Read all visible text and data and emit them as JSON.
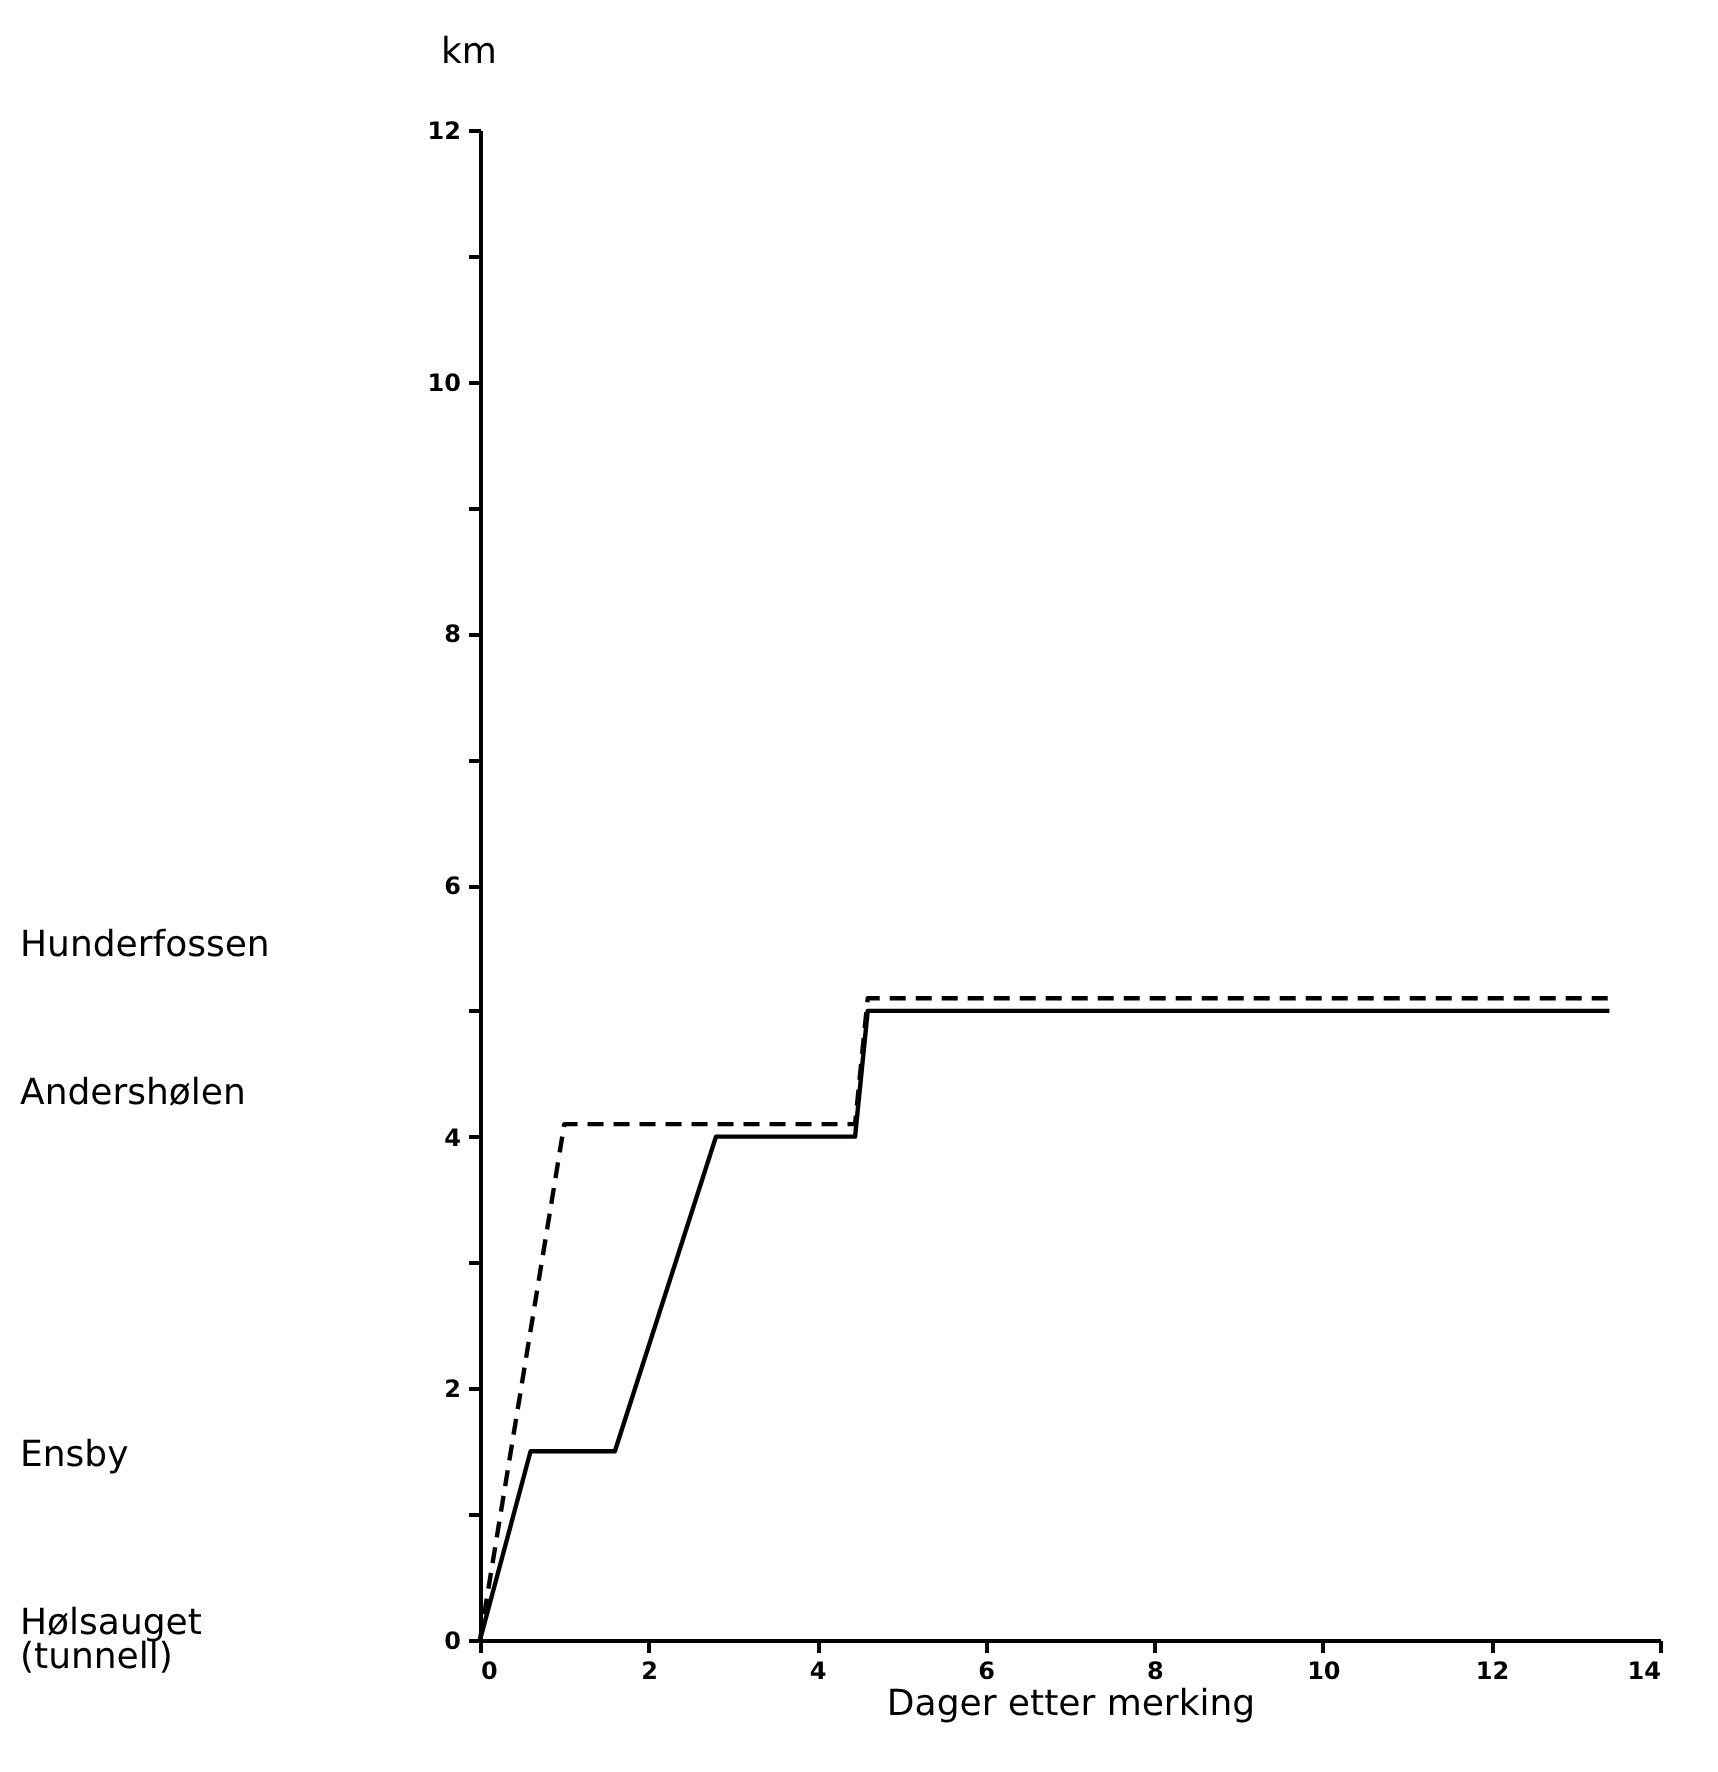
{
  "chart_data": {
    "type": "line",
    "xlabel": "Dager etter merking",
    "ylabel": "km",
    "xlim": [
      0,
      14
    ],
    "xticks": [
      0,
      2,
      4,
      6,
      8,
      10,
      12,
      14
    ],
    "ylim": [
      0,
      12
    ],
    "yticks": [
      0,
      {
        "value": 1,
        "label": null
      },
      2,
      {
        "value": 3,
        "label": null
      },
      4,
      {
        "value": 5,
        "label": null
      },
      6,
      {
        "value": 7,
        "label": null
      },
      8,
      {
        "value": 9,
        "label": null
      },
      10,
      {
        "value": 11,
        "label": null
      },
      12
    ],
    "annotations": [
      "Hunderfossen",
      "Andershølen",
      "Ensby",
      "Hølsauget\n(tunnell)"
    ],
    "grid": false,
    "legend": false,
    "marker": "none",
    "series": [
      {
        "color": "#000000",
        "line_style": "solid",
        "x": [
          0,
          0.6,
          1.6,
          2.8,
          4.45,
          4.6,
          13.4
        ],
        "values": [
          0,
          1.5,
          1.5,
          4.0,
          4.0,
          5.0,
          5.0
        ]
      },
      {
        "color": "#000000",
        "line_style": "dashed",
        "x": [
          0,
          1.0,
          4.45,
          4.6,
          13.4
        ],
        "values": [
          0,
          4.1,
          4.1,
          5.1,
          5.1
        ]
      }
    ]
  }
}
